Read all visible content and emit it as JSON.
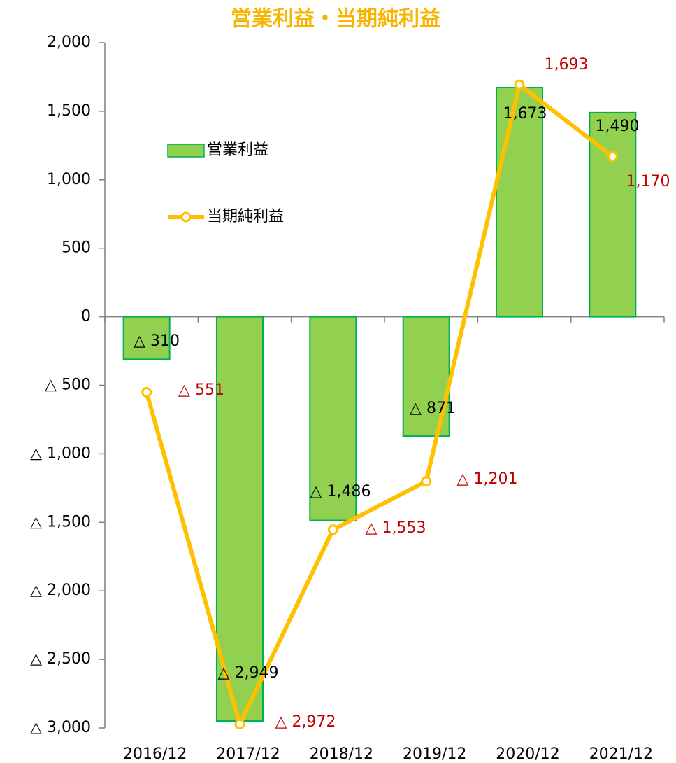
{
  "chart_data": {
    "type": "bar",
    "title": "営業利益・当期純利益",
    "categories": [
      "2016/12",
      "2017/12",
      "2018/12",
      "2019/12",
      "2020/12",
      "2021/12"
    ],
    "series": [
      {
        "name": "営業利益",
        "type": "bar",
        "color": "#92d050",
        "edge_color": "#00b050",
        "values": [
          -310,
          -2949,
          -1486,
          -871,
          1673,
          1490
        ],
        "value_labels": [
          "△ 310",
          "△ 2,949",
          "△ 1,486",
          "△ 871",
          "1,673",
          "1,490"
        ]
      },
      {
        "name": "当期純利益",
        "type": "line",
        "color": "#ffc000",
        "values": [
          -551,
          -2972,
          -1553,
          -1201,
          1693,
          1170
        ],
        "value_labels": [
          "△ 551",
          "△ 2,972",
          "△ 1,553",
          "△ 1,201",
          "1,693",
          "1,170"
        ]
      }
    ],
    "ylim": [
      -3000,
      2000
    ],
    "yticks": [
      {
        "value": 2000,
        "label": "2,000"
      },
      {
        "value": 1500,
        "label": "1,500"
      },
      {
        "value": 1000,
        "label": "1,000"
      },
      500,
      0,
      {
        "value": -500,
        "label": "△ 500"
      },
      {
        "value": -1000,
        "label": "△ 1,000"
      },
      {
        "value": -1500,
        "label": "△ 1,500"
      },
      {
        "value": -2000,
        "label": "△ 2,000"
      },
      {
        "value": -2500,
        "label": "△ 2,500"
      },
      {
        "value": -3000,
        "label": "△ 3,000"
      }
    ]
  }
}
